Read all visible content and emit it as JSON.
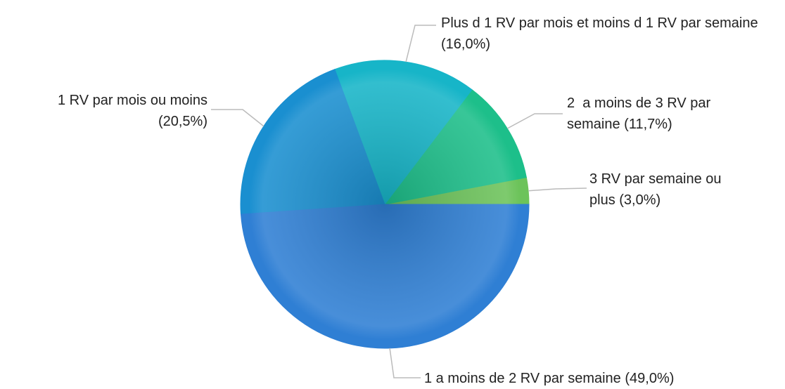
{
  "chart_data": {
    "type": "pie",
    "categories": [
      "3 RV par semaine ou plus",
      "2  a moins de 3 RV par semaine",
      "Plus d 1 RV par mois et moins d 1 RV par semaine",
      "1 RV par mois ou moins",
      "1 a moins de 2 RV par semaine"
    ],
    "values": [
      3,
      11.7,
      16,
      20.5,
      49
    ],
    "value_labels": [
      "(3,0%)",
      "(11,7%)",
      "(16,0%)",
      "(20,5%)",
      "(49,0%)"
    ],
    "colors": [
      "#6cc35a",
      "#1dbf8a",
      "#17b5c8",
      "#1a8fd0",
      "#2f7fd4"
    ]
  }
}
